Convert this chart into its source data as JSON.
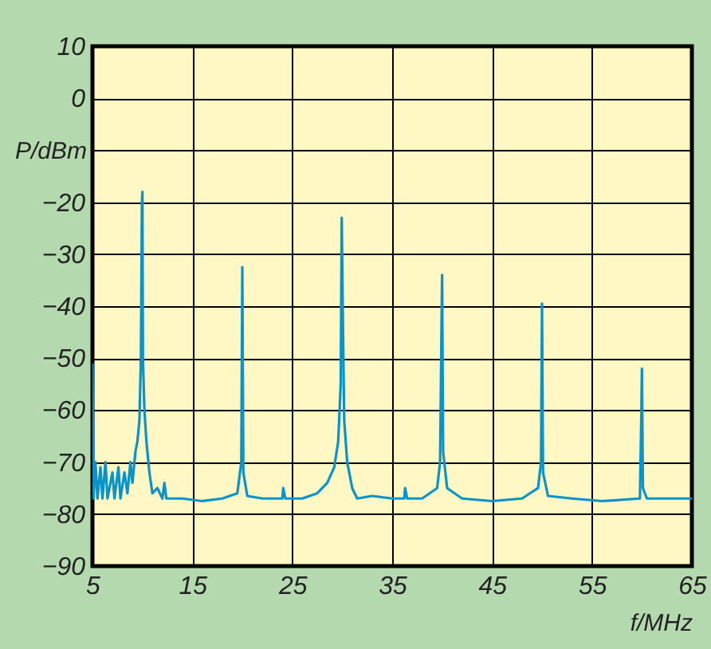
{
  "chart_data": {
    "type": "line",
    "xlabel": "f/MHz",
    "ylabel": "P/dBm",
    "xlim": [
      5,
      65
    ],
    "xticks": [
      5,
      15,
      25,
      35,
      45,
      55,
      65
    ],
    "ylim": [
      -90,
      10
    ],
    "yticks": [
      -90,
      -80,
      -70,
      -60,
      -50,
      -40,
      -30,
      -20,
      {
        "value": -10,
        "label": null
      },
      0,
      10
    ],
    "grid": true,
    "marker": "none",
    "line_style": "solid",
    "series": [
      {
        "color": "#0a93c8",
        "x": [
          5,
          5.1,
          5.3,
          5.5,
          5.8,
          6,
          6.3,
          6.5,
          7,
          7.2,
          7.6,
          7.8,
          8.2,
          8.5,
          8.8,
          9,
          9.3,
          9.5,
          9.7,
          9.85,
          9.95,
          10.0,
          10.05,
          10.2,
          10.4,
          10.7,
          11,
          11.5,
          12,
          12.2,
          12.4,
          14,
          16,
          18,
          19.5,
          19.9,
          20.0,
          20.1,
          20.5,
          22,
          24,
          24.1,
          24.3,
          26,
          27.5,
          28.5,
          29.2,
          29.6,
          29.85,
          29.95,
          30.05,
          30.2,
          30.5,
          31,
          31.5,
          33,
          35,
          36.2,
          36.3,
          36.5,
          38,
          39.5,
          39.8,
          39.95,
          40.0,
          40.1,
          40.5,
          42,
          45,
          48,
          49.6,
          49.9,
          50.0,
          50.1,
          50.6,
          53,
          56,
          59.8,
          59.95,
          60.0,
          60.1,
          60.5,
          63,
          65
        ],
        "values": [
          -51,
          -77,
          -70,
          -77,
          -71,
          -77,
          -70,
          -77,
          -72,
          -77,
          -71,
          -77,
          -72,
          -76,
          -70,
          -74,
          -68,
          -66,
          -62,
          -50,
          -20,
          -18,
          -50,
          -60,
          -66,
          -72,
          -76,
          -75,
          -77,
          -74,
          -77,
          -77,
          -77.5,
          -77,
          -76,
          -70,
          -32.5,
          -72,
          -76.5,
          -77,
          -77,
          -75,
          -77,
          -77,
          -76,
          -74,
          -71,
          -66,
          -55,
          -23,
          -40,
          -62,
          -70,
          -75,
          -77,
          -76.5,
          -77,
          -77,
          -75,
          -77,
          -77,
          -75,
          -70,
          -42,
          -34,
          -68,
          -75,
          -77,
          -77.5,
          -77,
          -75,
          -70,
          -39.5,
          -72,
          -76.5,
          -77,
          -77.5,
          -77,
          -60,
          -52,
          -75,
          -77,
          -77,
          -77
        ]
      }
    ]
  }
}
